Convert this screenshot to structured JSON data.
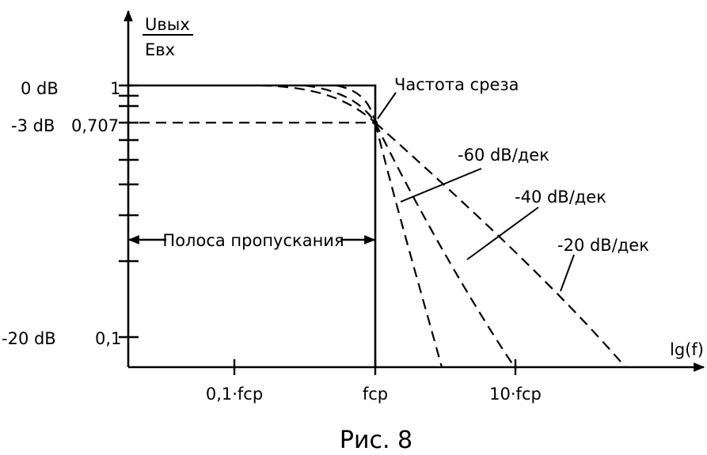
{
  "figure": {
    "y_axis_label_num": "Uвых",
    "y_axis_label_den": "Eвх",
    "x_axis_label": "lg(f)",
    "y_db_labels": [
      "0 dB",
      "-3 dB",
      "-20 dB"
    ],
    "y_value_labels": [
      "1",
      "0,707",
      "0,1"
    ],
    "x_tick_labels": [
      "0,1·fср",
      "fср",
      "10·fср"
    ],
    "cutoff_label": "Частота среза",
    "passband_label": "Полоса пропускания",
    "slope_labels": [
      "-60 dB/дек",
      "-40 dB/дек",
      "-20 dB/дек"
    ],
    "caption": "Рис. 8"
  }
}
